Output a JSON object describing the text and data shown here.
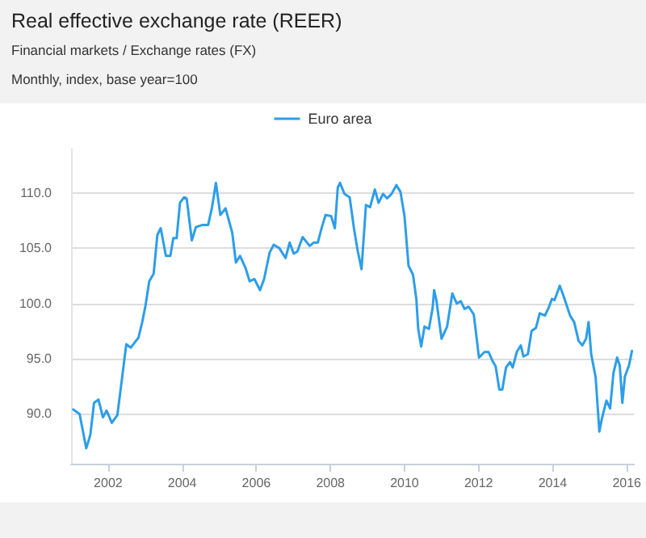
{
  "chart_data": {
    "type": "line",
    "title": "Real effective exchange rate (REER)",
    "subtitle": "Financial markets / Exchange rates (FX)",
    "annotations": [
      "Monthly, index, base year=100"
    ],
    "xlim": [
      2001.0,
      2016.2
    ],
    "xticks": [
      2002,
      2004,
      2006,
      2008,
      2010,
      2012,
      2014,
      2016
    ],
    "ylim": [
      85.5,
      114
    ],
    "yticks": [
      {
        "value": 90,
        "label": "90.0"
      },
      {
        "value": 95,
        "label": "95.0"
      },
      {
        "value": 100,
        "label": "100.0"
      },
      {
        "value": 105,
        "label": "105.0"
      },
      {
        "value": 110,
        "label": "110.0"
      }
    ],
    "grid": "y",
    "legend": "top",
    "marker": "none",
    "line_style": "solid",
    "series": [
      {
        "name": "Euro area",
        "color": "#2d9ee8",
        "x": [
          2001.06,
          2001.23,
          2001.41,
          2001.52,
          2001.62,
          2001.74,
          2001.86,
          2001.96,
          2002.1,
          2002.25,
          2002.39,
          2002.49,
          2002.61,
          2002.82,
          2002.92,
          2003.01,
          2003.11,
          2003.23,
          2003.33,
          2003.42,
          2003.56,
          2003.68,
          2003.76,
          2003.85,
          2003.94,
          2004.05,
          2004.12,
          2004.26,
          2004.37,
          2004.55,
          2004.7,
          2004.8,
          2004.91,
          2005.03,
          2005.17,
          2005.35,
          2005.45,
          2005.56,
          2005.71,
          2005.82,
          2005.95,
          2006.1,
          2006.21,
          2006.36,
          2006.47,
          2006.62,
          2006.79,
          2006.9,
          2007.01,
          2007.11,
          2007.25,
          2007.44,
          2007.55,
          2007.66,
          2007.77,
          2007.87,
          2008.02,
          2008.12,
          2008.2,
          2008.26,
          2008.38,
          2008.52,
          2008.64,
          2008.74,
          2008.84,
          2008.96,
          2009.07,
          2009.2,
          2009.3,
          2009.42,
          2009.53,
          2009.65,
          2009.78,
          2009.89,
          2010.0,
          2010.11,
          2010.23,
          2010.32,
          2010.37,
          2010.45,
          2010.54,
          2010.66,
          2010.76,
          2010.8,
          2010.86,
          2011.0,
          2011.15,
          2011.23,
          2011.29,
          2011.41,
          2011.52,
          2011.62,
          2011.73,
          2011.87,
          2012.01,
          2012.16,
          2012.27,
          2012.39,
          2012.46,
          2012.56,
          2012.64,
          2012.74,
          2012.85,
          2012.92,
          2013.03,
          2013.14,
          2013.21,
          2013.33,
          2013.43,
          2013.55,
          2013.65,
          2013.79,
          2013.89,
          2013.98,
          2014.05,
          2014.19,
          2014.29,
          2014.41,
          2014.47,
          2014.58,
          2014.7,
          2014.8,
          2014.9,
          2014.97,
          2015.04,
          2015.16,
          2015.26,
          2015.33,
          2015.45,
          2015.55,
          2015.64,
          2015.74,
          2015.81,
          2015.88,
          2015.95,
          2016.06,
          2016.14
        ],
        "values": [
          90.4,
          90.0,
          86.9,
          88.1,
          91.0,
          91.3,
          89.7,
          90.3,
          89.2,
          89.9,
          93.6,
          96.3,
          96.0,
          96.9,
          98.3,
          99.8,
          102.0,
          102.7,
          106.2,
          106.8,
          104.3,
          104.3,
          105.9,
          105.9,
          109.1,
          109.6,
          109.5,
          105.7,
          106.9,
          107.1,
          107.1,
          108.6,
          110.9,
          108.0,
          108.6,
          106.4,
          103.7,
          104.3,
          103.2,
          102.0,
          102.2,
          101.2,
          102.2,
          104.6,
          105.3,
          105.0,
          104.1,
          105.5,
          104.5,
          104.7,
          106.0,
          105.2,
          105.5,
          105.5,
          106.9,
          108.0,
          107.9,
          106.8,
          110.5,
          110.9,
          109.9,
          109.6,
          106.7,
          104.7,
          103.1,
          108.9,
          108.7,
          110.3,
          109.1,
          109.9,
          109.5,
          109.9,
          110.7,
          110.1,
          107.9,
          103.4,
          102.6,
          100.4,
          97.7,
          96.1,
          97.9,
          97.7,
          99.6,
          101.2,
          100.3,
          96.8,
          97.9,
          99.6,
          100.9,
          100.0,
          100.2,
          99.5,
          99.7,
          99.0,
          95.1,
          95.6,
          95.6,
          94.7,
          94.3,
          92.2,
          92.2,
          94.2,
          94.7,
          94.2,
          95.6,
          96.2,
          95.2,
          95.4,
          97.5,
          97.8,
          99.1,
          98.9,
          99.6,
          100.4,
          100.3,
          101.6,
          100.7,
          99.5,
          98.9,
          98.3,
          96.6,
          96.2,
          96.8,
          98.3,
          95.4,
          93.3,
          88.4,
          89.6,
          91.2,
          90.5,
          93.7,
          95.1,
          94.4,
          91.0,
          93.4,
          94.4,
          95.7
        ]
      }
    ]
  }
}
